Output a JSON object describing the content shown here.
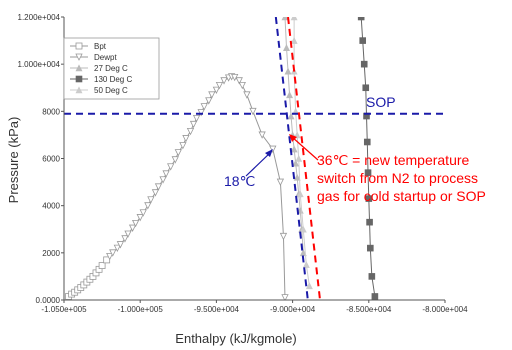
{
  "chart_data": {
    "type": "scatter",
    "xlabel": "Enthalpy (kJ/kgmole)",
    "ylabel": "Pressure (kPa)",
    "xlim": [
      -105000,
      -80000
    ],
    "ylim": [
      0,
      12000
    ],
    "x_ticks": [
      {
        "value": -105000,
        "label": "-1.050e+005"
      },
      {
        "value": -100000,
        "label": "-1.000e+005"
      },
      {
        "value": -95000,
        "label": "-9.500e+004"
      },
      {
        "value": -90000,
        "label": "-9.000e+004"
      },
      {
        "value": -85000,
        "label": "-8.500e+004"
      },
      {
        "value": -80000,
        "label": "-8.000e+004"
      }
    ],
    "y_ticks": [
      {
        "value": 0,
        "label": "0.0000"
      },
      {
        "value": 2000,
        "label": "2000"
      },
      {
        "value": 4000,
        "label": "4000"
      },
      {
        "value": 6000,
        "label": "6000"
      },
      {
        "value": 8000,
        "label": "8000"
      },
      {
        "value": 10000,
        "label": "1.000e+004"
      },
      {
        "value": 12000,
        "label": "1.200e+004"
      }
    ],
    "grid": false,
    "legend_position": "top-left",
    "series": [
      {
        "name": "Bpt",
        "marker": "square-open",
        "color": "#999999",
        "x": [
          -104700,
          -104500,
          -104300,
          -104100,
          -103900,
          -103700,
          -103500,
          -103300,
          -103100,
          -102900,
          -102700,
          -102500,
          -102200
        ],
        "y": [
          150,
          250,
          330,
          430,
          530,
          640,
          760,
          880,
          1000,
          1150,
          1300,
          1460,
          1700
        ]
      },
      {
        "name": "Dewpt",
        "marker": "triangle-down-open",
        "color": "#999999",
        "x": [
          -102000,
          -101800,
          -101500,
          -101300,
          -101000,
          -100800,
          -100500,
          -100300,
          -100000,
          -99800,
          -99500,
          -99300,
          -99000,
          -98800,
          -98500,
          -98300,
          -98000,
          -97700,
          -97500,
          -97200,
          -97000,
          -96700,
          -96500,
          -96300,
          -96000,
          -95800,
          -95500,
          -95300,
          -95000,
          -94800,
          -94500,
          -94200,
          -94000,
          -93800,
          -93500,
          -93300,
          -93000,
          -92600,
          -92000,
          -91300,
          -90800,
          -90600,
          -90500
        ],
        "y": [
          1850,
          2000,
          2200,
          2350,
          2600,
          2800,
          3050,
          3250,
          3500,
          3700,
          4000,
          4250,
          4550,
          4800,
          5100,
          5350,
          5650,
          5950,
          6250,
          6550,
          6850,
          7150,
          7450,
          7700,
          7950,
          8200,
          8450,
          8700,
          8900,
          9100,
          9300,
          9420,
          9470,
          9440,
          9300,
          9100,
          8700,
          8000,
          7000,
          6400,
          5000,
          2700,
          100
        ]
      },
      {
        "name": "27 Deg C",
        "marker": "triangle-up-filled",
        "color": "#bbbbbb",
        "x": [
          -90500,
          -90400,
          -90300,
          -90200,
          -90100,
          -90000,
          -89900,
          -89800,
          -89700,
          -89600,
          -89500,
          -89400,
          -89300
        ],
        "y": [
          12000,
          10700,
          9700,
          8700,
          7800,
          7000,
          6400,
          5800,
          5200,
          4500,
          3800,
          3000,
          2000
        ]
      },
      {
        "name": "130 Deg C",
        "marker": "square-filled",
        "color": "#666666",
        "x": [
          -85500,
          -85400,
          -85300,
          -85200,
          -85150,
          -85100,
          -85050,
          -85000,
          -84950,
          -84900,
          -84800,
          -84600
        ],
        "y": [
          12000,
          11000,
          10000,
          9000,
          7800,
          6700,
          5400,
          4300,
          3300,
          2200,
          1000,
          150
        ]
      },
      {
        "name": "50 Deg C",
        "marker": "triangle-up-filled",
        "color": "#cccccc",
        "x": [
          -89900,
          -89900,
          -89900,
          -89800,
          -89700,
          -89600,
          -89500,
          -89300,
          -89100,
          -88900
        ],
        "y": [
          12000,
          11000,
          9700,
          8000,
          7000,
          6000,
          4500,
          3000,
          1500,
          600
        ]
      }
    ],
    "reference_lines": [
      {
        "kind": "horizontal",
        "y": 7900,
        "color": "#1a1aa8",
        "style": "dashed"
      },
      {
        "kind": "segment",
        "from": [
          -91100,
          12000
        ],
        "to": [
          -89000,
          0
        ],
        "color": "#1a1aa8",
        "style": "dashed"
      },
      {
        "kind": "segment",
        "from": [
          -90300,
          12000
        ],
        "to": [
          -88200,
          0
        ],
        "color": "#ff0000",
        "style": "dashed"
      }
    ],
    "annotations": {
      "sop": {
        "text": "SOP",
        "color": "#1a1aa8"
      },
      "blue_temp": {
        "text": "18℃",
        "color": "#1a1aa8"
      },
      "red_note": {
        "lines": [
          "36℃ = new temperature",
          "switch from N2 to process",
          "gas for cold startup or SOP"
        ],
        "color": "#ff0000"
      }
    }
  }
}
